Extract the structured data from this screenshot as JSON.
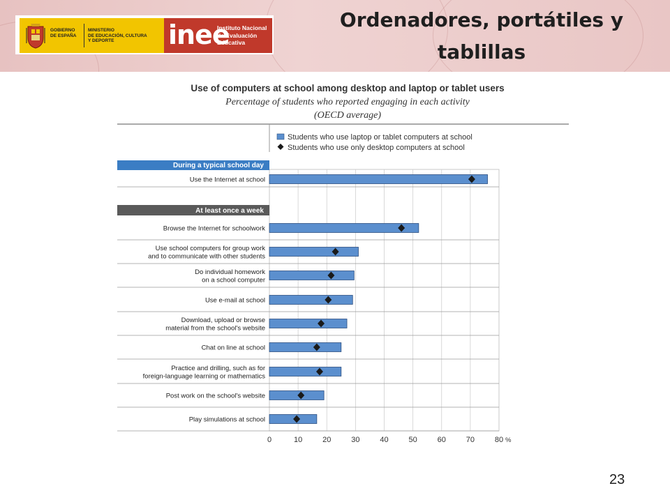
{
  "slide": {
    "title": "Ordenadores, portátiles y tablillas",
    "page_number": "23"
  },
  "logos": {
    "gov_text": "GOBIERNO\nDE ESPAÑA",
    "ministry_text": "MINISTERIO\nDE EDUCACIÓN, CULTURA\nY DEPORTE",
    "inee_word": "inee",
    "institute_text": "Instituto Nacional\nde Evaluación\nEducativa",
    "brand_yellow": "#f2c500",
    "brand_red": "#c0392b"
  },
  "chart_data": {
    "type": "bar",
    "title": "Use of computers at school among desktop and laptop or tablet users",
    "subtitle": "Percentage of students who reported engaging in each activity",
    "subtitle2": "(OECD average)",
    "legend": [
      {
        "label": "Students who use laptop or tablet computers at school",
        "marker": "bar",
        "color": "#5b8fce"
      },
      {
        "label": "Students who use only desktop computers at school",
        "marker": "diamond",
        "color": "#1a1a1a"
      }
    ],
    "orientation": "horizontal",
    "xlim": [
      0,
      80
    ],
    "xticks": [
      "0",
      "10",
      "20",
      "30",
      "40",
      "50",
      "60",
      "70",
      "80"
    ],
    "x_unit": "%",
    "sections": [
      {
        "header": "During a typical school day",
        "header_color": "#3b7dc4",
        "categories": [
          "Use the Internet at school"
        ]
      },
      {
        "header": "At least once a week",
        "header_color": "#5a5a5a",
        "categories": [
          "Browse the Internet for schoolwork",
          "Use school computers for group work\nand to communicate with other students",
          "Do individual homework\non a school computer",
          "Use e-mail at school",
          "Download, upload or browse\nmaterial from the school's website",
          "Chat on line at school",
          "Practice and drilling, such as for\nforeign-language learning or mathematics",
          "Post work on the school's website",
          "Play simulations at school"
        ]
      }
    ],
    "series": [
      {
        "name": "Students who use laptop or tablet computers at school",
        "values": [
          76,
          52,
          31,
          29.5,
          29,
          27,
          25,
          25,
          19,
          16.5
        ]
      },
      {
        "name": "Students who use only desktop computers at school",
        "values": [
          70.5,
          46,
          23,
          21.5,
          20.5,
          18,
          16.5,
          17.5,
          11,
          9.5
        ]
      }
    ],
    "grid": true
  }
}
